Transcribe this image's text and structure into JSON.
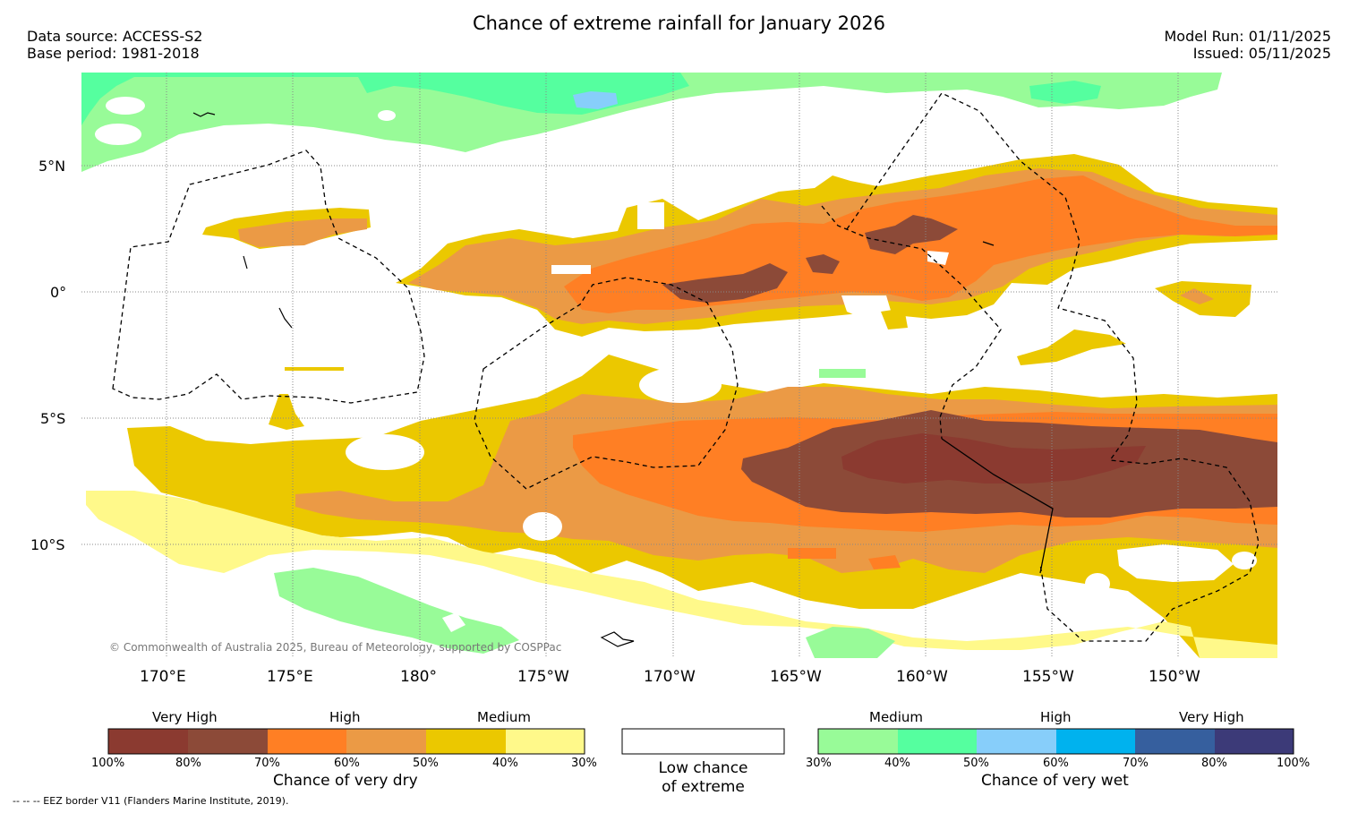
{
  "title": "Chance of extreme rainfall for January 2026",
  "header": {
    "data_source": "Data source: ACCESS-S2",
    "base_period": "Base period: 1981-2018",
    "model_run": "Model Run: 01/11/2025",
    "issued": "Issued: 05/11/2025"
  },
  "map": {
    "lon_labels": [
      "170°E",
      "175°E",
      "180°",
      "175°W",
      "170°W",
      "165°W",
      "160°W",
      "155°W",
      "150°W"
    ],
    "lat_labels": [
      "5°N",
      "0°",
      "5°S",
      "10°S"
    ],
    "copyright": "© Commonwealth of Australia 2025, Bureau of Meteorology, supported by COSPPac"
  },
  "legend": {
    "dry": {
      "categories": [
        "Very High",
        "High",
        "Medium"
      ],
      "ticks": [
        "100%",
        "80%",
        "70%",
        "60%",
        "50%",
        "40%",
        "30%"
      ],
      "caption": "Chance of very dry",
      "colors": [
        "#8b3a30",
        "#8c4a38",
        "#ff7f24",
        "#eb9a45",
        "#ebc800",
        "#fff98a"
      ]
    },
    "neutral": {
      "caption_line1": "Low chance",
      "caption_line2": "of extreme"
    },
    "wet": {
      "categories": [
        "Medium",
        "High",
        "Very High"
      ],
      "ticks": [
        "30%",
        "40%",
        "50%",
        "60%",
        "70%",
        "80%",
        "100%"
      ],
      "caption": "Chance of very wet",
      "colors": [
        "#98fb98",
        "#55ff9f",
        "#87cefa",
        "#00b2ee",
        "#365f9e",
        "#3c3a78"
      ]
    },
    "eez_note": "--  --  -- EEZ border V11 (Flanders Marine Institute, 2019)."
  },
  "colors": {
    "dry_vh": "#8b3a30",
    "dry_h80": "#8c4a38",
    "dry_h70": "#ff7f24",
    "dry_m60": "#eb9a45",
    "dry_m50": "#ebc800",
    "dry_l40": "#fff98a",
    "wet_30": "#98fb98",
    "wet_40": "#55ff9f",
    "wet_50": "#87cefa"
  }
}
